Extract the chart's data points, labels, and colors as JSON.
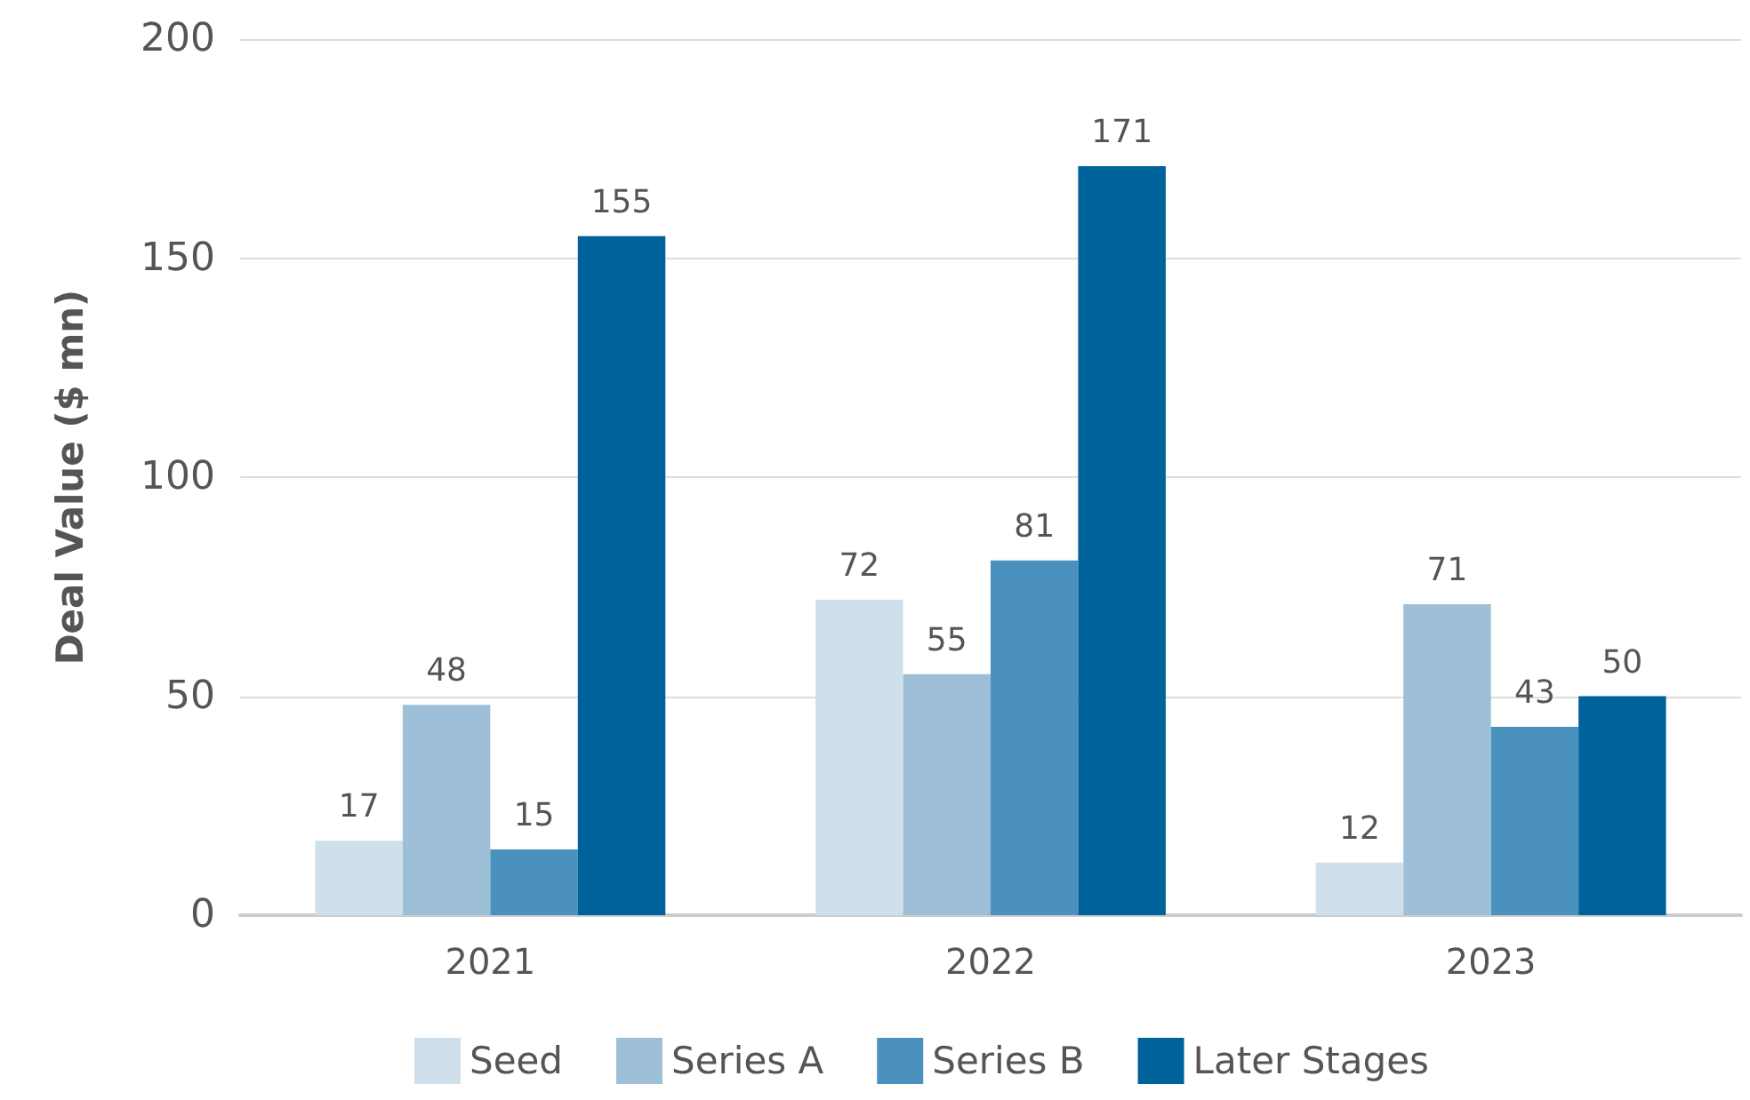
{
  "chart_data": {
    "type": "bar",
    "ylabel": "Deal Value ($ mn)",
    "categories": [
      "2021",
      "2022",
      "2023"
    ],
    "series": [
      {
        "name": "Seed",
        "color": "#cfe0eb",
        "values": [
          17,
          72,
          12
        ]
      },
      {
        "name": "Series A",
        "color": "#9dc0d8",
        "values": [
          48,
          55,
          71
        ]
      },
      {
        "name": "Series B",
        "color": "#4a92bd",
        "values": [
          15,
          81,
          43
        ]
      },
      {
        "name": "Later Stages",
        "color": "#00629b",
        "values": [
          155,
          171,
          50
        ]
      }
    ],
    "ylim": [
      0,
      200
    ],
    "yticks": [
      0,
      50,
      100,
      150,
      200
    ],
    "grid": "y",
    "legend": "bottom",
    "data_labels": true
  }
}
